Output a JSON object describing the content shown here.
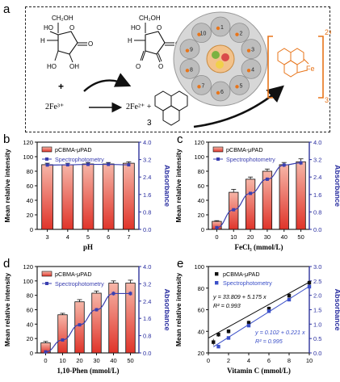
{
  "figure": {
    "panel_labels": [
      "a",
      "b",
      "c",
      "d",
      "e"
    ],
    "scheme": {
      "ascorbic_group": "CH₂OH",
      "ho_label": "HO",
      "h_label": "H",
      "oh_label": "OH",
      "o_label": "O",
      "plus": "+",
      "reactant_iron": "2Fe³⁺",
      "product_iron": "2Fe²⁺ +",
      "phen_coefficient": "3",
      "complex_charge": "2+",
      "complex_subscript": "3",
      "complex_metal": "Fe",
      "device_numbers": [
        "1",
        "2",
        "3",
        "4",
        "5",
        "6",
        "7",
        "8",
        "9",
        "10"
      ]
    },
    "colors": {
      "bar_fill_top": "#f6b6a8",
      "bar_fill_bottom": "#e0342a",
      "line_blue": "#3a3fb0",
      "axis_right": "#2a2fa0",
      "orange": "#e8751a",
      "e_black": "#111111",
      "e_blue": "#3a4fc8"
    }
  },
  "chart_data": [
    {
      "panel": "b",
      "type": "bar",
      "categories": [
        "3",
        "4",
        "5",
        "6",
        "7"
      ],
      "xlabel": "pH",
      "ylabel": "Mean relative intensity",
      "y2label": "Absorbance",
      "ylim": [
        0,
        120
      ],
      "y2lim": [
        0.0,
        4.0
      ],
      "yticks": [
        "0",
        "20",
        "40",
        "60",
        "80",
        "100",
        "120"
      ],
      "y2ticks": [
        "0.0",
        "0.8",
        "1.6",
        "2.4",
        "3.2",
        "4.0"
      ],
      "legend": [
        "pCBMA-μPAD",
        "Spectrophotometry"
      ],
      "legend_position": "top-left",
      "series": [
        {
          "name": "pCBMA-μPAD",
          "kind": "bar",
          "values": [
            89,
            89,
            90,
            90,
            91
          ],
          "errors": [
            2,
            2,
            2,
            2,
            2
          ]
        },
        {
          "name": "Spectrophotometry",
          "kind": "line",
          "axis": "right",
          "values": [
            2.95,
            2.96,
            2.98,
            2.98,
            2.96
          ],
          "errors": [
            0.06,
            0.05,
            0.05,
            0.05,
            0.06
          ]
        }
      ]
    },
    {
      "panel": "c",
      "type": "bar",
      "categories": [
        "0",
        "10",
        "20",
        "30",
        "40",
        "50"
      ],
      "xlabel": "FeCl₃ (mmol/L)",
      "ylabel": "Mean relative intensity",
      "y2label": "Absorbance",
      "ylim": [
        0,
        120
      ],
      "y2lim": [
        0.0,
        4.0
      ],
      "yticks": [
        "0",
        "20",
        "40",
        "60",
        "80",
        "100",
        "120"
      ],
      "y2ticks": [
        "0.0",
        "0.8",
        "1.6",
        "2.4",
        "3.2",
        "4.0"
      ],
      "legend": [
        "pCBMA-μPAD",
        "Spectrophotometry"
      ],
      "legend_position": "top-left",
      "series": [
        {
          "name": "pCBMA-μPAD",
          "kind": "bar",
          "values": [
            11,
            51,
            69,
            80,
            89,
            93
          ],
          "errors": [
            1,
            4,
            3,
            3,
            3,
            4
          ]
        },
        {
          "name": "Spectrophotometry",
          "kind": "line",
          "axis": "right",
          "values": [
            0.08,
            0.9,
            1.65,
            2.3,
            2.95,
            3.05
          ],
          "errors": [
            0.03,
            0.05,
            0.06,
            0.08,
            0.1,
            0.1
          ]
        }
      ]
    },
    {
      "panel": "d",
      "type": "bar",
      "categories": [
        "0",
        "10",
        "20",
        "30",
        "40",
        "50"
      ],
      "xlabel": "1,10-Phen (mmol/L)",
      "ylabel": "Mean relative intensity",
      "y2label": "Absorbance",
      "ylim": [
        0,
        120
      ],
      "y2lim": [
        0.0,
        4.0
      ],
      "yticks": [
        "0",
        "20",
        "40",
        "60",
        "80",
        "100",
        "120"
      ],
      "y2ticks": [
        "0.0",
        "0.8",
        "1.6",
        "2.4",
        "3.2",
        "4.0"
      ],
      "legend": [
        "pCBMA-μPAD",
        "Spectrophotometry"
      ],
      "legend_position": "top-left",
      "series": [
        {
          "name": "pCBMA-μPAD",
          "kind": "bar",
          "values": [
            14,
            53,
            71,
            83,
            97,
            97
          ],
          "errors": [
            2,
            2,
            3,
            3,
            3,
            4
          ]
        },
        {
          "name": "Spectrophotometry",
          "kind": "line",
          "axis": "right",
          "values": [
            0.05,
            0.6,
            1.3,
            2.0,
            2.75,
            2.75
          ],
          "errors": [
            0.03,
            0.05,
            0.06,
            0.08,
            0.1,
            0.1
          ]
        }
      ]
    },
    {
      "panel": "e",
      "type": "scatter",
      "xlabel": "Vitamin C (mmol/L)",
      "ylabel": "Mean relative intensity",
      "y2label": "Absorbance",
      "xlim": [
        0,
        10
      ],
      "ylim": [
        20,
        100
      ],
      "y2lim": [
        0.0,
        3.0
      ],
      "xticks": [
        "0",
        "2",
        "4",
        "6",
        "8",
        "10"
      ],
      "yticks": [
        "20",
        "40",
        "60",
        "80",
        "100"
      ],
      "y2ticks": [
        "0.0",
        "0.5",
        "1.0",
        "1.5",
        "2.0",
        "2.5",
        "3.0"
      ],
      "legend": [
        "pCBMA-μPAD",
        "Spectrophotometry"
      ],
      "legend_position": "top-left",
      "annotations": [
        {
          "text": "y = 33.809 + 5.175 x",
          "color": "black"
        },
        {
          "text": "R² = 0.993",
          "color": "black"
        },
        {
          "text": "y = 0.102 + 0.221 x",
          "color": "blue"
        },
        {
          "text": "R² = 0.995",
          "color": "blue"
        }
      ],
      "series": [
        {
          "name": "pCBMA-μPAD",
          "kind": "scatter",
          "marker": "square",
          "x": [
            0.5,
            1,
            2,
            4,
            6,
            8,
            10
          ],
          "y": [
            30,
            37,
            40,
            48,
            61,
            73,
            85
          ],
          "errors": [
            3,
            2,
            2,
            2,
            2,
            2,
            2
          ],
          "fit": {
            "intercept": 33.809,
            "slope": 5.175
          }
        },
        {
          "name": "Spectrophotometry",
          "kind": "scatter",
          "marker": "square",
          "axis": "right",
          "x": [
            1,
            2,
            4,
            6,
            8,
            10
          ],
          "y": [
            0.22,
            0.52,
            0.95,
            1.45,
            1.85,
            2.3
          ],
          "fit": {
            "intercept": 0.102,
            "slope": 0.221
          }
        }
      ]
    }
  ]
}
